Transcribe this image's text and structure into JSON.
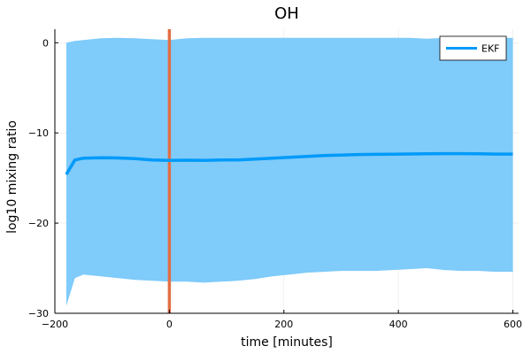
{
  "chart_data": {
    "type": "line",
    "title": "OH",
    "xlabel": "time [minutes]",
    "ylabel": "log10 mixing ratio",
    "xlim": [
      -200,
      610
    ],
    "ylim": [
      -30,
      1.5
    ],
    "xticks": [
      -200,
      0,
      200,
      400,
      600
    ],
    "xtick_labels": [
      "−200",
      "0",
      "200",
      "400",
      "600"
    ],
    "yticks": [
      -30,
      -20,
      -10,
      0
    ],
    "ytick_labels": [
      "−30",
      "−20",
      "−10",
      "0"
    ],
    "grid": true,
    "legend_position": "top-right",
    "vertical_line": {
      "x": 0,
      "color": "#e26f46"
    },
    "series": [
      {
        "name": "EKF",
        "color": "#009af9",
        "band_color": "#7fcbfa",
        "x": [
          -180,
          -165,
          -150,
          -120,
          -90,
          -60,
          -30,
          0,
          30,
          60,
          90,
          120,
          150,
          180,
          210,
          240,
          270,
          300,
          330,
          360,
          390,
          420,
          450,
          480,
          510,
          540,
          570,
          600
        ],
        "y": [
          -14.6,
          -13.0,
          -12.8,
          -12.75,
          -12.78,
          -12.85,
          -13.0,
          -13.05,
          -13.02,
          -13.05,
          -13.0,
          -13.0,
          -12.9,
          -12.8,
          -12.7,
          -12.6,
          -12.5,
          -12.45,
          -12.4,
          -12.38,
          -12.36,
          -12.34,
          -12.32,
          -12.3,
          -12.3,
          -12.32,
          -12.35,
          -12.35
        ],
        "upper": [
          0.0,
          0.2,
          0.3,
          0.5,
          0.55,
          0.5,
          0.4,
          0.3,
          0.5,
          0.55,
          0.55,
          0.55,
          0.55,
          0.55,
          0.55,
          0.55,
          0.55,
          0.55,
          0.55,
          0.55,
          0.55,
          0.55,
          0.45,
          0.55,
          0.55,
          0.55,
          0.55,
          0.55
        ],
        "lower": [
          -29.2,
          -26.1,
          -25.7,
          -25.9,
          -26.1,
          -26.3,
          -26.4,
          -26.5,
          -26.5,
          -26.6,
          -26.5,
          -26.4,
          -26.2,
          -25.9,
          -25.7,
          -25.5,
          -25.4,
          -25.3,
          -25.3,
          -25.3,
          -25.2,
          -25.1,
          -25.0,
          -25.2,
          -25.3,
          -25.3,
          -25.4,
          -25.4
        ]
      }
    ]
  }
}
